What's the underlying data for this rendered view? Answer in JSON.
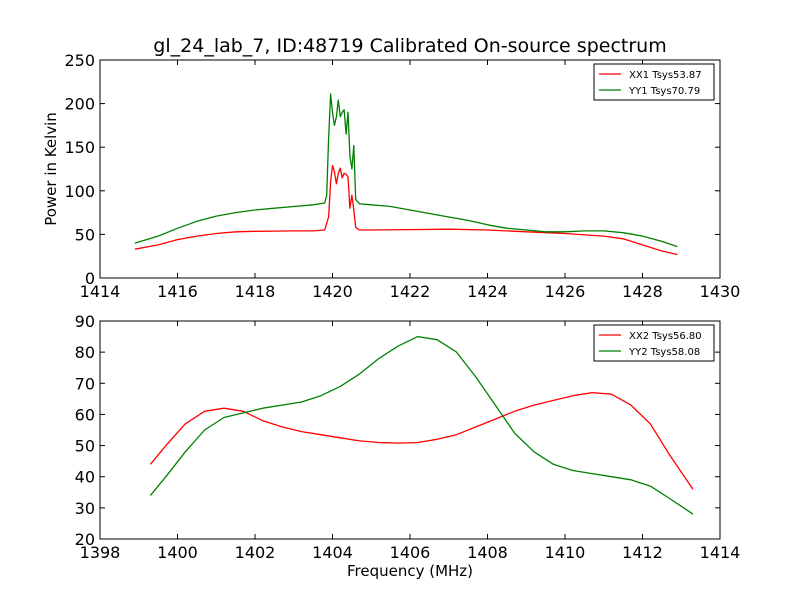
{
  "title": "gl_24_lab_7, ID:48719 Calibrated On-source spectrum",
  "chart_data": [
    {
      "type": "line",
      "ylabel": "Power in Kelvin",
      "xlabel": "",
      "xlim": [
        1414,
        1430
      ],
      "ylim": [
        0,
        250
      ],
      "xticks": [
        "1414",
        "1416",
        "1418",
        "1420",
        "1422",
        "1424",
        "1426",
        "1428",
        "1430"
      ],
      "yticks": [
        "0",
        "50",
        "100",
        "150",
        "200",
        "250"
      ],
      "legend_position": "top-right",
      "series": [
        {
          "name": "XX1 Tsys53.87",
          "color": "#ff0000",
          "points": [
            [
              1414.9,
              33
            ],
            [
              1415.5,
              38
            ],
            [
              1416.0,
              44
            ],
            [
              1416.5,
              48
            ],
            [
              1417.0,
              51
            ],
            [
              1417.5,
              53
            ],
            [
              1418.0,
              53.5
            ],
            [
              1418.5,
              53.8
            ],
            [
              1419.0,
              54
            ],
            [
              1419.5,
              54
            ],
            [
              1419.8,
              55
            ],
            [
              1419.9,
              70
            ],
            [
              1419.95,
              110
            ],
            [
              1420.0,
              129
            ],
            [
              1420.05,
              122
            ],
            [
              1420.1,
              108
            ],
            [
              1420.15,
              120
            ],
            [
              1420.2,
              126
            ],
            [
              1420.25,
              115
            ],
            [
              1420.3,
              120
            ],
            [
              1420.35,
              119
            ],
            [
              1420.4,
              116
            ],
            [
              1420.45,
              80
            ],
            [
              1420.5,
              95
            ],
            [
              1420.55,
              78
            ],
            [
              1420.6,
              58
            ],
            [
              1420.7,
              55
            ],
            [
              1421.0,
              55
            ],
            [
              1422.0,
              55.5
            ],
            [
              1423.0,
              56
            ],
            [
              1424.0,
              55
            ],
            [
              1425.0,
              53
            ],
            [
              1426.0,
              51
            ],
            [
              1427.0,
              48
            ],
            [
              1427.5,
              45
            ],
            [
              1428.0,
              38
            ],
            [
              1428.5,
              31
            ],
            [
              1428.9,
              27
            ]
          ]
        },
        {
          "name": "YY1 Tsys70.79",
          "color": "#008000",
          "points": [
            [
              1414.9,
              40
            ],
            [
              1415.5,
              48
            ],
            [
              1416.0,
              57
            ],
            [
              1416.5,
              65
            ],
            [
              1417.0,
              71
            ],
            [
              1417.5,
              75
            ],
            [
              1418.0,
              78
            ],
            [
              1418.5,
              80
            ],
            [
              1419.0,
              82
            ],
            [
              1419.5,
              84
            ],
            [
              1419.8,
              86
            ],
            [
              1419.85,
              95
            ],
            [
              1419.9,
              160
            ],
            [
              1419.95,
              211
            ],
            [
              1420.0,
              190
            ],
            [
              1420.05,
              175
            ],
            [
              1420.1,
              185
            ],
            [
              1420.15,
              204
            ],
            [
              1420.2,
              185
            ],
            [
              1420.25,
              190
            ],
            [
              1420.3,
              193
            ],
            [
              1420.35,
              165
            ],
            [
              1420.4,
              190
            ],
            [
              1420.45,
              140
            ],
            [
              1420.5,
              125
            ],
            [
              1420.55,
              152
            ],
            [
              1420.6,
              90
            ],
            [
              1420.7,
              85
            ],
            [
              1421.0,
              84
            ],
            [
              1421.5,
              82
            ],
            [
              1422.0,
              78
            ],
            [
              1422.5,
              74
            ],
            [
              1423.0,
              70
            ],
            [
              1423.5,
              66
            ],
            [
              1424.0,
              61
            ],
            [
              1424.5,
              57
            ],
            [
              1425.0,
              55
            ],
            [
              1425.5,
              53
            ],
            [
              1426.0,
              53
            ],
            [
              1426.5,
              54
            ],
            [
              1427.0,
              54
            ],
            [
              1427.5,
              52
            ],
            [
              1428.0,
              48
            ],
            [
              1428.5,
              42
            ],
            [
              1428.9,
              36
            ]
          ]
        }
      ]
    },
    {
      "type": "line",
      "ylabel": "",
      "xlabel": "Frequency (MHz)",
      "xlim": [
        1398,
        1414
      ],
      "ylim": [
        20,
        90
      ],
      "xticks": [
        "1398",
        "1400",
        "1402",
        "1404",
        "1406",
        "1408",
        "1410",
        "1412",
        "1414"
      ],
      "yticks": [
        "20",
        "30",
        "40",
        "50",
        "60",
        "70",
        "80",
        "90"
      ],
      "legend_position": "top-right",
      "series": [
        {
          "name": "XX2 Tsys56.80",
          "color": "#ff0000",
          "points": [
            [
              1399.3,
              44
            ],
            [
              1399.7,
              50
            ],
            [
              1400.2,
              57
            ],
            [
              1400.7,
              61
            ],
            [
              1401.2,
              62
            ],
            [
              1401.7,
              61
            ],
            [
              1402.2,
              58
            ],
            [
              1402.7,
              56
            ],
            [
              1403.2,
              54.5
            ],
            [
              1403.7,
              53.5
            ],
            [
              1404.2,
              52.5
            ],
            [
              1404.7,
              51.5
            ],
            [
              1405.2,
              51
            ],
            [
              1405.7,
              50.8
            ],
            [
              1406.2,
              51
            ],
            [
              1406.7,
              52
            ],
            [
              1407.2,
              53.5
            ],
            [
              1407.7,
              56
            ],
            [
              1408.2,
              58.5
            ],
            [
              1408.7,
              61
            ],
            [
              1409.2,
              63
            ],
            [
              1409.7,
              64.5
            ],
            [
              1410.2,
              66
            ],
            [
              1410.7,
              67
            ],
            [
              1411.2,
              66.5
            ],
            [
              1411.7,
              63
            ],
            [
              1412.2,
              57
            ],
            [
              1412.7,
              47
            ],
            [
              1413.3,
              36
            ]
          ]
        },
        {
          "name": "YY2 Tsys58.08",
          "color": "#008000",
          "points": [
            [
              1399.3,
              34
            ],
            [
              1399.7,
              40
            ],
            [
              1400.2,
              48
            ],
            [
              1400.7,
              55
            ],
            [
              1401.2,
              59
            ],
            [
              1401.7,
              60.5
            ],
            [
              1402.2,
              62
            ],
            [
              1402.7,
              63
            ],
            [
              1403.2,
              64
            ],
            [
              1403.7,
              66
            ],
            [
              1404.2,
              69
            ],
            [
              1404.7,
              73
            ],
            [
              1405.2,
              78
            ],
            [
              1405.7,
              82
            ],
            [
              1406.2,
              85
            ],
            [
              1406.7,
              84
            ],
            [
              1407.2,
              80
            ],
            [
              1407.7,
              72
            ],
            [
              1408.2,
              63
            ],
            [
              1408.7,
              54
            ],
            [
              1409.2,
              48
            ],
            [
              1409.7,
              44
            ],
            [
              1410.2,
              42
            ],
            [
              1410.7,
              41
            ],
            [
              1411.2,
              40
            ],
            [
              1411.7,
              39
            ],
            [
              1412.2,
              37
            ],
            [
              1412.7,
              33
            ],
            [
              1413.3,
              28
            ]
          ]
        }
      ]
    }
  ]
}
